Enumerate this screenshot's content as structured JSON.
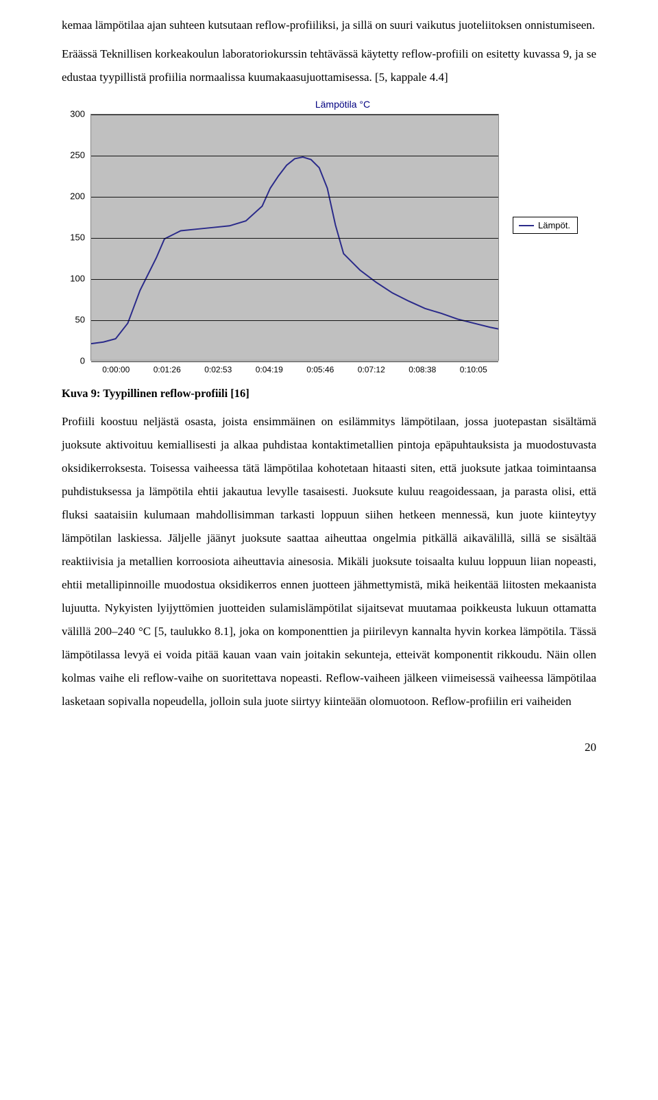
{
  "para1": "kemaa lämpötilaa ajan suhteen kutsutaan reflow-profiiliksi, ja sillä on suuri vaikutus juoteliitoksen onnistumiseen.",
  "para2": "Eräässä Teknillisen korkeakoulun laboratoriokurssin tehtävässä käytetty reflow-profiili on esitetty kuvassa 9, ja se edustaa tyypillistä profiilia normaalissa kuumakaasujuottamisessa. [5, kappale 4.4]",
  "chart": {
    "type": "line",
    "title": "Lämpötila °C",
    "ylim": [
      0,
      300
    ],
    "yticks": [
      0,
      50,
      100,
      150,
      200,
      250,
      300
    ],
    "xticks": [
      "0:00:00",
      "0:01:26",
      "0:02:53",
      "0:04:19",
      "0:05:46",
      "0:07:12",
      "0:08:38",
      "0:10:05"
    ],
    "background_color": "#c0c0c0",
    "grid_color": "#000000",
    "line_color": "#2a2a8a",
    "line_width": 2,
    "legend_label": "Lämpöt.",
    "series": {
      "x": [
        0,
        0.03,
        0.06,
        0.09,
        0.12,
        0.16,
        0.18,
        0.22,
        0.26,
        0.3,
        0.34,
        0.38,
        0.42,
        0.44,
        0.46,
        0.48,
        0.5,
        0.52,
        0.54,
        0.56,
        0.58,
        0.6,
        0.62,
        0.66,
        0.7,
        0.74,
        0.78,
        0.82,
        0.86,
        0.9,
        0.94,
        0.98,
        1.0
      ],
      "y": [
        20,
        22,
        26,
        45,
        85,
        125,
        148,
        158,
        160,
        162,
        164,
        170,
        188,
        210,
        225,
        238,
        246,
        248,
        245,
        235,
        210,
        165,
        130,
        110,
        95,
        82,
        72,
        63,
        57,
        50,
        45,
        40,
        38
      ]
    }
  },
  "figure_caption": "Kuva 9: Tyypillinen reflow-profiili [16]",
  "para3": "Profiili koostuu neljästä osasta, joista ensimmäinen on esilämmitys lämpötilaan, jossa juotepastan sisältämä juoksute aktivoituu kemiallisesti ja alkaa puhdistaa kontaktimetallien pintoja epäpuhtauksista ja muodostuvasta oksidikerroksesta. Toisessa vaiheessa tätä lämpötilaa kohotetaan hitaasti siten, että juoksute jatkaa toimintaansa puhdistuksessa ja lämpötila ehtii jakautua levylle tasaisesti. Juoksute kuluu reagoidessaan, ja parasta olisi, että fluksi saataisiin kulumaan mahdollisimman tarkasti loppuun siihen hetkeen mennessä, kun juote kiinteytyy lämpötilan laskiessa. Jäljelle jäänyt juoksute saattaa aiheuttaa ongelmia pitkällä aikavälillä, sillä se sisältää reaktiivisia ja metallien korroosiota aiheuttavia ainesosia. Mikäli juoksute toisaalta kuluu loppuun liian nopeasti, ehtii metallipinnoille muodostua oksidikerros ennen juotteen jähmettymistä, mikä heikentää liitosten mekaanista lujuutta. Nykyisten lyijyttömien juotteiden sulamislämpötilat sijaitsevat muutamaa poikkeusta lukuun ottamatta välillä 200–240 °C [5, taulukko 8.1], joka on komponenttien ja piirilevyn kannalta hyvin korkea lämpötila. Tässä lämpötilassa levyä ei voida pitää kauan vaan vain joitakin sekunteja, etteivät komponentit rikkoudu. Näin ollen kolmas vaihe eli reflow-vaihe on suoritettava nopeasti. Reflow-vaiheen jälkeen viimeisessä vaiheessa lämpötilaa lasketaan sopivalla nopeudella, jolloin sula juote siirtyy kiinteään olomuotoon. Reflow-profiilin eri vaiheiden",
  "page_number": "20"
}
